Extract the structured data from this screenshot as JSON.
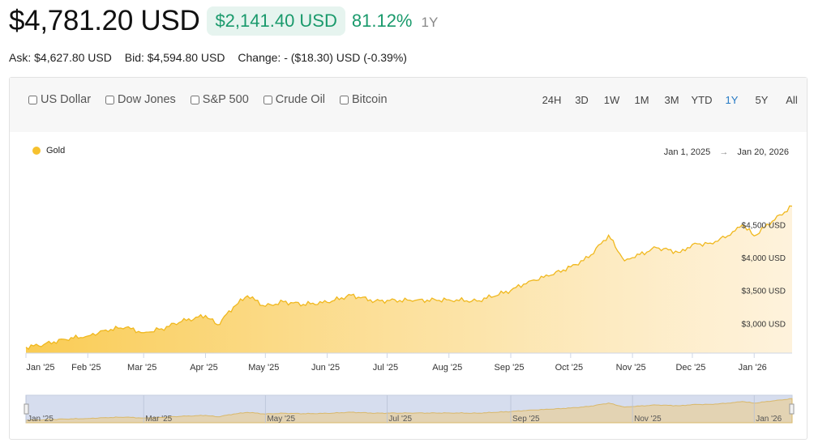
{
  "header": {
    "price": "$4,781.20 USD",
    "change_abs": "$2,141.40 USD",
    "change_pct": "81.12%",
    "period": "1Y"
  },
  "quote": {
    "ask": "Ask: $4,627.80 USD",
    "bid": "Bid: $4,594.80 USD",
    "change": "Change: - ($18.30) USD (-0.39%)"
  },
  "compare": [
    "US Dollar",
    "Dow Jones",
    "S&P 500",
    "Crude Oil",
    "Bitcoin"
  ],
  "periods": [
    "24H",
    "3D",
    "1W",
    "1M",
    "3M",
    "YTD",
    "1Y",
    "5Y",
    "All"
  ],
  "active_period": "1Y",
  "range": {
    "start": "Jan 1, 2025",
    "arrow": "→",
    "end": "Jan 20, 2026"
  },
  "colors": {
    "gold": "#f6c12e",
    "positive": "#1a9a6c",
    "active": "#2479c4"
  },
  "navigator_labels": [
    "Jan '25",
    "Mar '25",
    "May '25",
    "Jul '25",
    "Sep '25",
    "Nov '25",
    "Jan '26"
  ],
  "chart_data": {
    "type": "area",
    "title": "",
    "legend": [
      "Gold"
    ],
    "x_ticks": [
      "Jan '25",
      "Feb '25",
      "Mar '25",
      "Apr '25",
      "May '25",
      "Jun '25",
      "Jul '25",
      "Aug '25",
      "Sep '25",
      "Oct '25",
      "Nov '25",
      "Dec '25",
      "Jan '26"
    ],
    "y_ticks": [
      "$3,000 USD",
      "$3,500 USD",
      "$4,000 USD",
      "$4,500 USD"
    ],
    "y_tick_values": [
      3000,
      3500,
      4000,
      4500
    ],
    "ylim": [
      2550,
      4800
    ],
    "grid": false,
    "y_axis_position": "right",
    "series": [
      {
        "name": "Gold",
        "x": [
          "2025-01-01",
          "2025-01-10",
          "2025-01-20",
          "2025-02-01",
          "2025-02-10",
          "2025-02-20",
          "2025-03-01",
          "2025-03-10",
          "2025-03-20",
          "2025-04-01",
          "2025-04-07",
          "2025-04-15",
          "2025-04-22",
          "2025-05-01",
          "2025-05-10",
          "2025-05-20",
          "2025-06-01",
          "2025-06-13",
          "2025-06-25",
          "2025-07-01",
          "2025-07-15",
          "2025-08-01",
          "2025-08-15",
          "2025-09-01",
          "2025-09-10",
          "2025-09-20",
          "2025-10-01",
          "2025-10-10",
          "2025-10-20",
          "2025-10-28",
          "2025-11-01",
          "2025-11-13",
          "2025-11-25",
          "2025-12-01",
          "2025-12-10",
          "2025-12-20",
          "2025-12-26",
          "2026-01-01",
          "2026-01-10",
          "2026-01-20"
        ],
        "values": [
          2640,
          2680,
          2760,
          2810,
          2900,
          2940,
          2860,
          2920,
          3030,
          3120,
          2980,
          3250,
          3420,
          3260,
          3330,
          3290,
          3320,
          3430,
          3340,
          3350,
          3350,
          3360,
          3340,
          3500,
          3640,
          3720,
          3860,
          4000,
          4340,
          3950,
          4000,
          4150,
          4080,
          4200,
          4220,
          4340,
          4500,
          4330,
          4550,
          4781.2
        ]
      }
    ]
  }
}
